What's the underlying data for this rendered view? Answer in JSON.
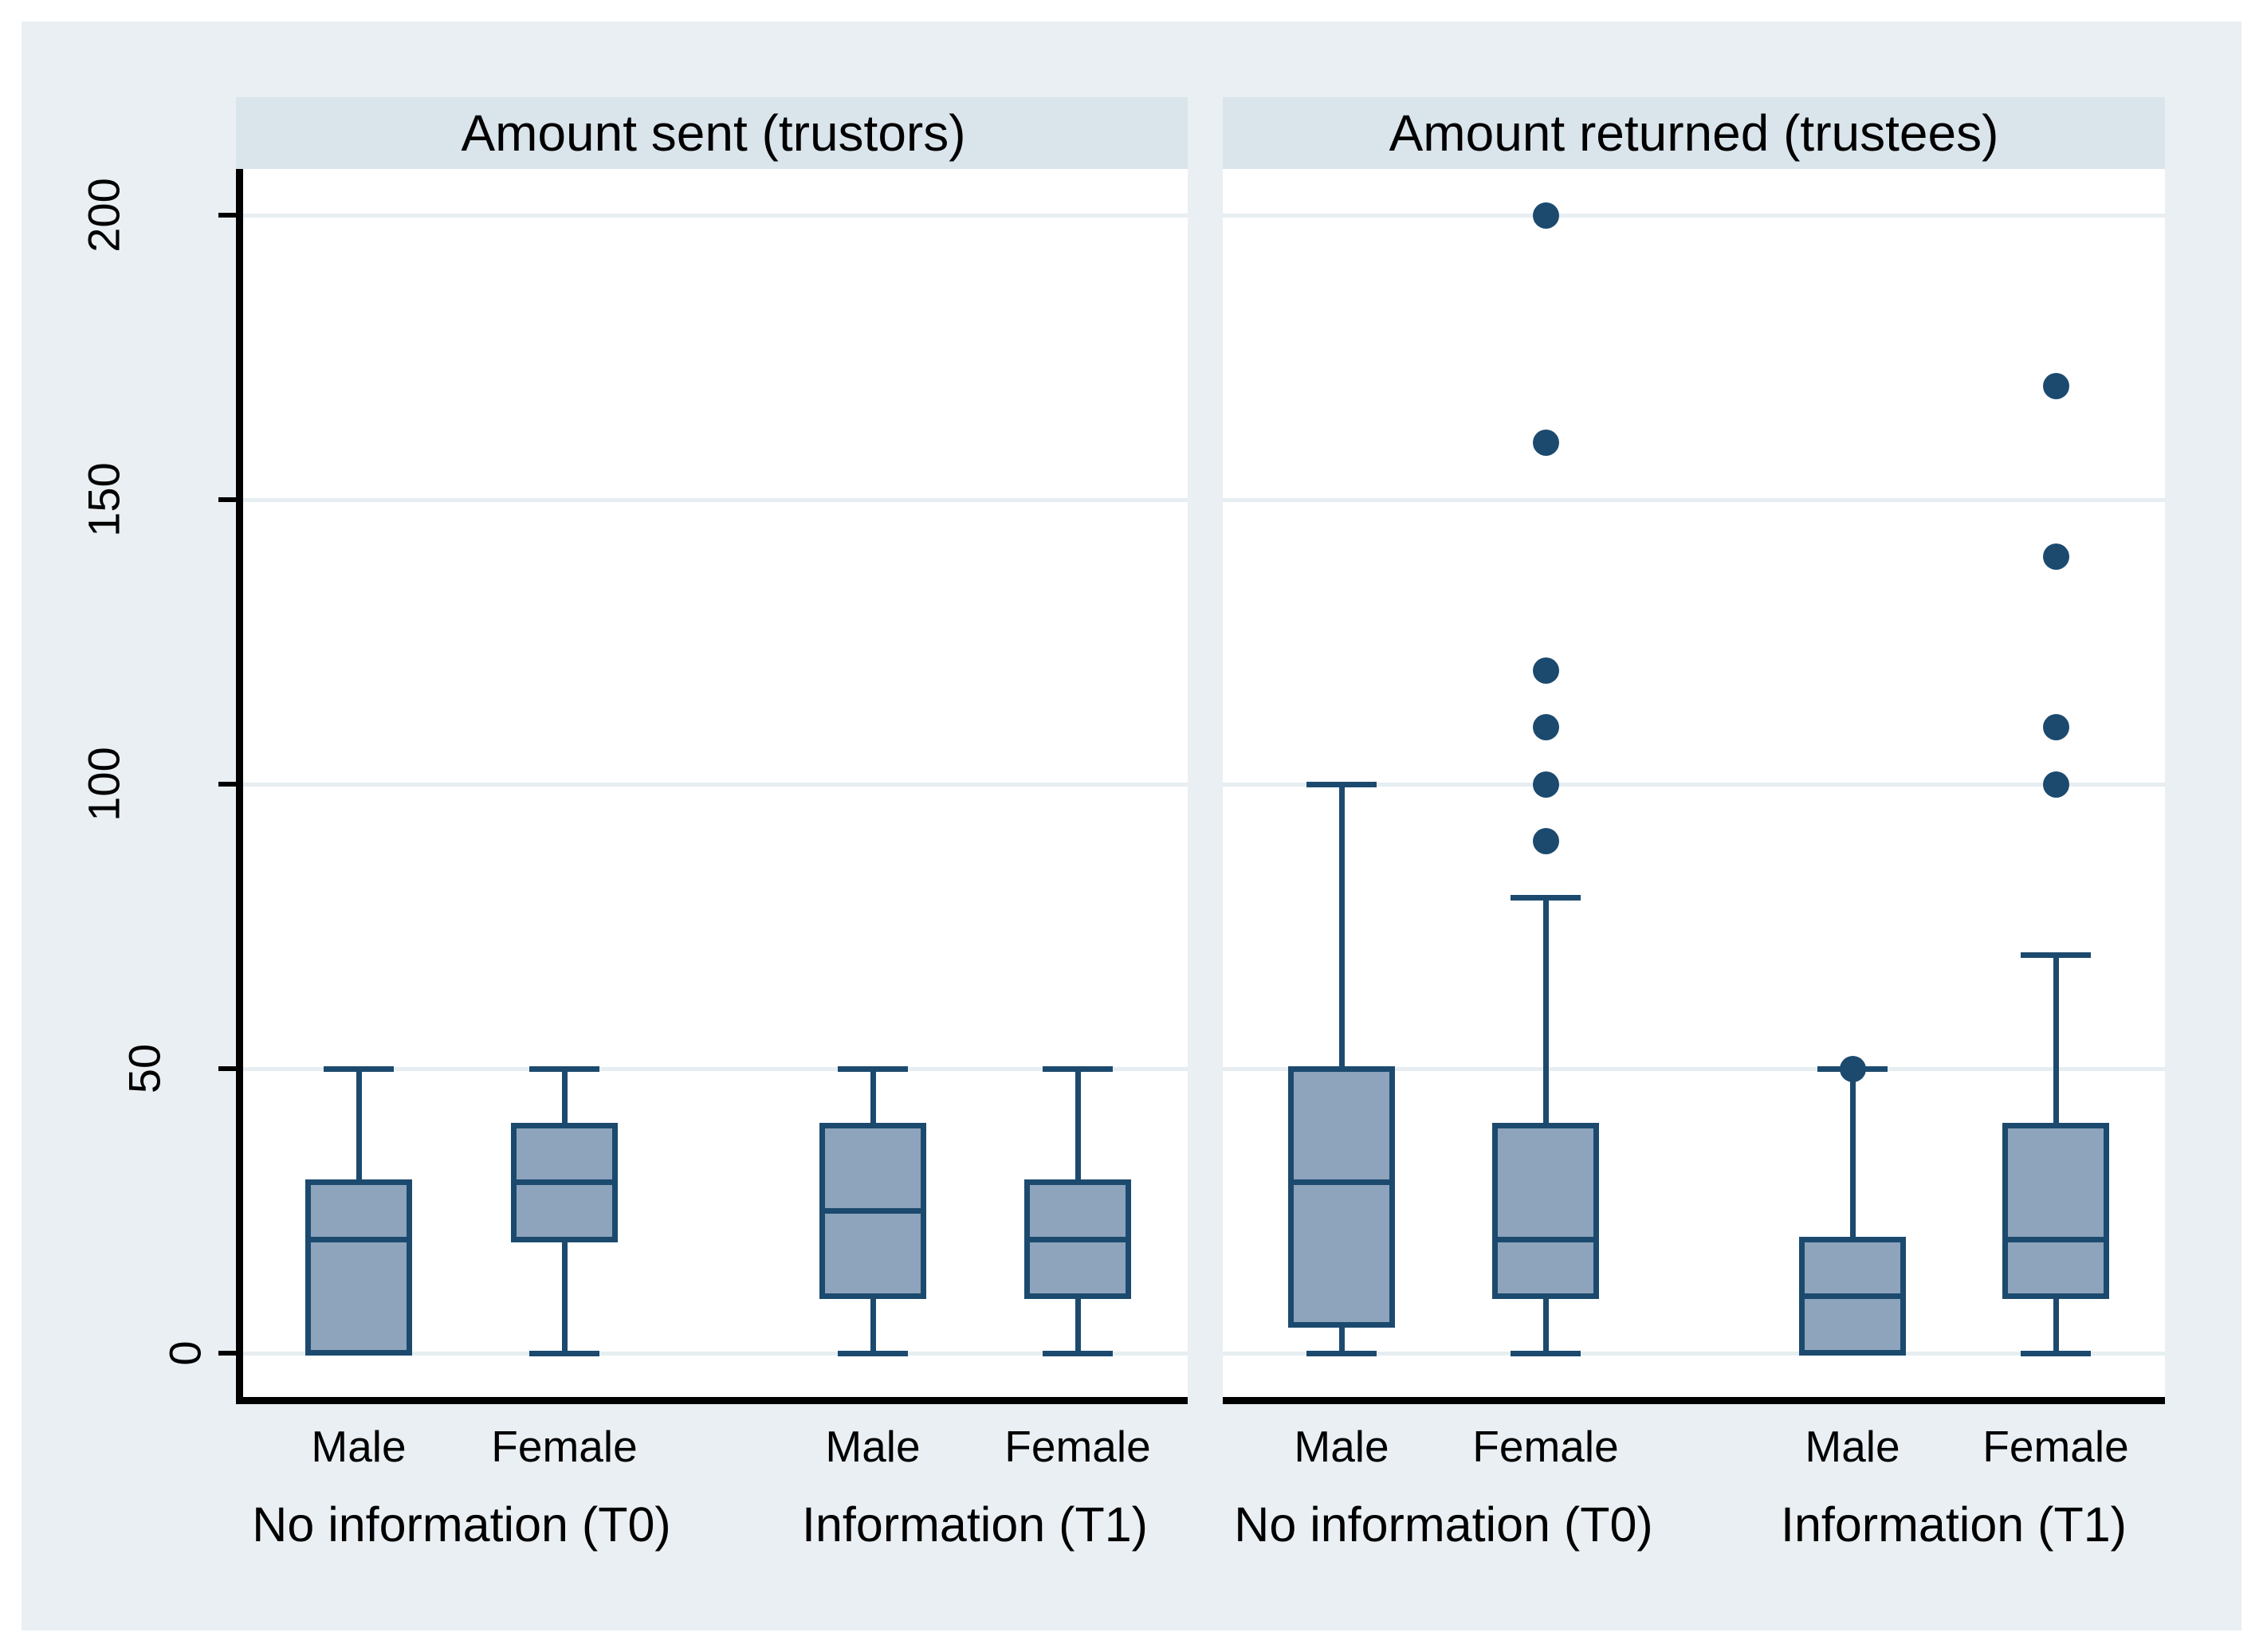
{
  "colors": {
    "page_bg": "#ffffff",
    "figure_bg": "#e9eff2",
    "header_band_bg": "#dae4eb",
    "plot_bg": "#ffffff",
    "gridline": "#e7eef2",
    "box_fill": "#8da4bc",
    "box_line": "#1c4a6e",
    "axis_line": "#000000",
    "text": "#000000"
  },
  "chart_data": {
    "type": "box",
    "orientation": "vertical",
    "y_axis": {
      "ticks": [
        0,
        50,
        100,
        150,
        200
      ],
      "range": [
        0,
        215
      ],
      "grid": true
    },
    "panels": [
      {
        "title": "Amount sent (trustors)",
        "groups": [
          {
            "label": "No information (T0)",
            "boxes": [
              {
                "label": "Male",
                "whisker_low": 0,
                "q1": 0,
                "median": 20,
                "q3": 30,
                "whisker_high": 50,
                "outliers": []
              },
              {
                "label": "Female",
                "whisker_low": 0,
                "q1": 20,
                "median": 30,
                "q3": 40,
                "whisker_high": 50,
                "outliers": []
              }
            ]
          },
          {
            "label": "Information (T1)",
            "boxes": [
              {
                "label": "Male",
                "whisker_low": 0,
                "q1": 10,
                "median": 25,
                "q3": 40,
                "whisker_high": 50,
                "outliers": []
              },
              {
                "label": "Female",
                "whisker_low": 0,
                "q1": 10,
                "median": 20,
                "q3": 30,
                "whisker_high": 50,
                "outliers": []
              }
            ]
          }
        ]
      },
      {
        "title": "Amount returned (trustees)",
        "groups": [
          {
            "label": "No information (T0)",
            "boxes": [
              {
                "label": "Male",
                "whisker_low": 0,
                "q1": 5,
                "median": 30,
                "q3": 50,
                "whisker_high": 100,
                "outliers": []
              },
              {
                "label": "Female",
                "whisker_low": 0,
                "q1": 10,
                "median": 20,
                "q3": 40,
                "whisker_high": 80,
                "outliers": [
                  90,
                  100,
                  110,
                  120,
                  160,
                  200
                ]
              }
            ]
          },
          {
            "label": "Information (T1)",
            "boxes": [
              {
                "label": "Male",
                "whisker_low": 0,
                "q1": 0,
                "median": 10,
                "q3": 20,
                "whisker_high": 50,
                "outliers": [
                  50
                ]
              },
              {
                "label": "Female",
                "whisker_low": 0,
                "q1": 10,
                "median": 20,
                "q3": 40,
                "whisker_high": 70,
                "outliers": [
                  100,
                  110,
                  140,
                  170
                ]
              }
            ]
          }
        ]
      }
    ]
  }
}
